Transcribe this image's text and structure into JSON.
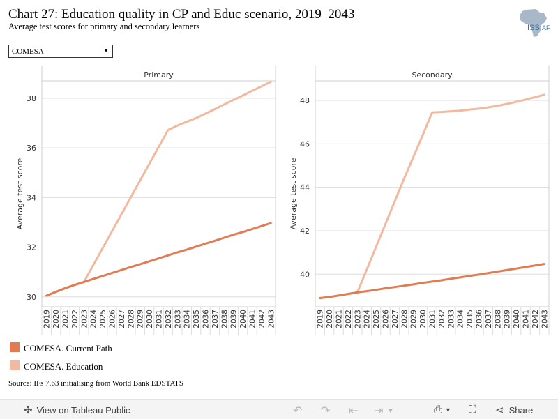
{
  "header": {
    "title": "Chart 27: Education quality in CP and Educ scenario, 2019–2043",
    "subtitle": "Average test scores for primary and secondary learners",
    "logo_text": "ISS",
    "logo_text2": "AF"
  },
  "filter": {
    "selected": "COMESA"
  },
  "legend": [
    {
      "label": "COMESA. Current Path",
      "color": "#E07B52"
    },
    {
      "label": "COMESA. Education",
      "color": "#F2B9A0"
    }
  ],
  "source": "Source: IFs 7.63 initialising from World Bank EDSTATS",
  "toolbar": {
    "view_label": "View on Tableau Public",
    "share_label": "Share"
  },
  "chart_data": [
    {
      "type": "line",
      "title": "Primary",
      "ylabel": "Average test score",
      "x": [
        2019,
        2020,
        2021,
        2022,
        2023,
        2024,
        2025,
        2026,
        2027,
        2028,
        2029,
        2030,
        2031,
        2032,
        2033,
        2034,
        2035,
        2036,
        2037,
        2038,
        2039,
        2040,
        2041,
        2042,
        2043
      ],
      "ylim": [
        29.6,
        38.7
      ],
      "yticks": [
        30,
        32,
        34,
        36,
        38
      ],
      "series": [
        {
          "name": "COMESA. Current Path",
          "color": "#E07B52",
          "values": [
            30.05,
            30.2,
            30.35,
            30.48,
            30.6,
            30.72,
            30.84,
            30.96,
            31.08,
            31.2,
            31.31,
            31.43,
            31.55,
            31.67,
            31.79,
            31.9,
            32.02,
            32.14,
            32.26,
            32.38,
            32.5,
            32.61,
            32.73,
            32.85,
            32.97
          ]
        },
        {
          "name": "COMESA. Education",
          "color": "#F2B9A0",
          "values": [
            30.05,
            30.2,
            30.35,
            30.48,
            30.6,
            31.28,
            31.96,
            32.64,
            33.32,
            34.0,
            34.68,
            35.36,
            36.04,
            36.72,
            36.9,
            37.05,
            37.2,
            37.38,
            37.56,
            37.75,
            37.93,
            38.11,
            38.3,
            38.48,
            38.66
          ]
        }
      ]
    },
    {
      "type": "line",
      "title": "Secondary",
      "ylabel": "Average test score",
      "x": [
        2019,
        2020,
        2021,
        2022,
        2023,
        2024,
        2025,
        2026,
        2027,
        2028,
        2029,
        2030,
        2031,
        2032,
        2033,
        2034,
        2035,
        2036,
        2037,
        2038,
        2039,
        2040,
        2041,
        2042,
        2043
      ],
      "ylim": [
        38.5,
        48.9
      ],
      "yticks": [
        40,
        42,
        44,
        46,
        48
      ],
      "series": [
        {
          "name": "COMESA. Current Path",
          "color": "#E07B52",
          "values": [
            38.9,
            38.95,
            39.02,
            39.09,
            39.16,
            39.22,
            39.28,
            39.35,
            39.41,
            39.47,
            39.53,
            39.6,
            39.66,
            39.72,
            39.79,
            39.85,
            39.92,
            39.98,
            40.05,
            40.12,
            40.19,
            40.26,
            40.33,
            40.4,
            40.47
          ]
        },
        {
          "name": "COMESA. Education",
          "color": "#F2B9A0",
          "values": [
            38.9,
            38.95,
            39.02,
            39.09,
            39.16,
            40.2,
            41.25,
            42.3,
            43.35,
            44.4,
            45.4,
            46.4,
            47.45,
            47.47,
            47.5,
            47.53,
            47.58,
            47.62,
            47.68,
            47.75,
            47.84,
            47.93,
            48.04,
            48.15,
            48.26
          ]
        }
      ]
    }
  ]
}
